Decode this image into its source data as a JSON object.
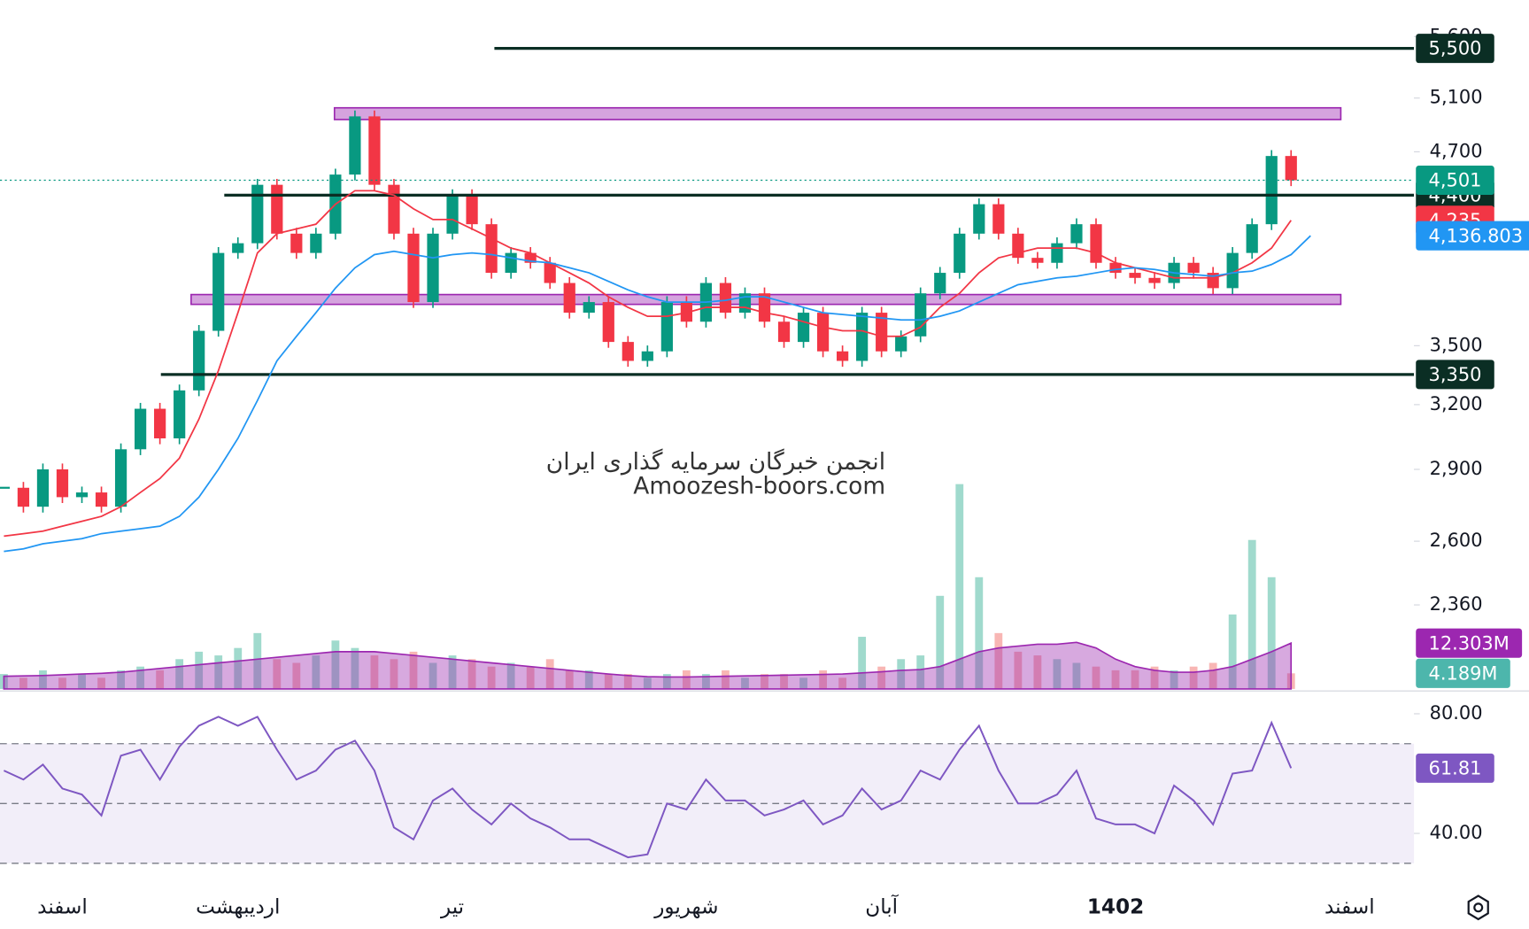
{
  "chart_data": [
    {
      "type": "candlestick",
      "log_scale": true,
      "ylim": [
        2080,
        5920
      ],
      "yticks": [
        {
          "value": 5600,
          "label": "5,600"
        },
        {
          "value": 5100,
          "label": "5,100"
        },
        {
          "value": 4700,
          "label": "4,700"
        },
        {
          "value": 3500,
          "label": "3,500"
        },
        {
          "value": 3200,
          "label": "3,200"
        },
        {
          "value": 2900,
          "label": "2,900"
        },
        {
          "value": 2600,
          "label": "2,600"
        },
        {
          "value": 2360,
          "label": "2,360"
        }
      ],
      "categories": [
        null,
        null,
        null,
        "اسفند",
        null,
        null,
        null,
        null,
        null,
        null,
        null,
        null,
        "اردیبهشت",
        null,
        null,
        null,
        null,
        null,
        null,
        null,
        null,
        null,
        null,
        "تیر",
        null,
        null,
        null,
        null,
        null,
        null,
        null,
        null,
        null,
        null,
        null,
        "شهریور",
        null,
        null,
        null,
        null,
        null,
        null,
        null,
        null,
        null,
        "آبان",
        null,
        null,
        null,
        null,
        null,
        null,
        null,
        null,
        null,
        null,
        null,
        "1402",
        null,
        null,
        null,
        null,
        null,
        null,
        null,
        null,
        null,
        null,
        null,
        "اسفند",
        null,
        null
      ],
      "close": [
        2820,
        2740,
        2900,
        2780,
        2800,
        2740,
        2990,
        3180,
        3040,
        3270,
        3580,
        4030,
        4090,
        4470,
        4150,
        4030,
        4150,
        4540,
        4960,
        4470,
        4150,
        3740,
        4150,
        4400,
        4210,
        3910,
        4030,
        3970,
        3850,
        3680,
        3740,
        3520,
        3420,
        3470,
        3740,
        3630,
        3850,
        3680,
        3790,
        3630,
        3520,
        3680,
        3470,
        3420,
        3680,
        3470,
        3550,
        3790,
        3910,
        4150,
        4340,
        4150,
        4000,
        3970,
        4090,
        4210,
        3970,
        3910,
        3880,
        3850,
        3970,
        3910,
        3820,
        4030,
        4210,
        4670,
        4501,
        null,
        null,
        null,
        null,
        null
      ],
      "last_label": "4,501",
      "up_color": "#089981",
      "down_color": "#f23645",
      "series": [
        {
          "color": "#f23645",
          "values": [
            2620,
            2630,
            2640,
            2660,
            2680,
            2700,
            2740,
            2800,
            2860,
            2950,
            3130,
            3370,
            3680,
            4030,
            4150,
            4180,
            4210,
            4340,
            4430,
            4430,
            4400,
            4310,
            4240,
            4240,
            4180,
            4120,
            4060,
            4030,
            3970,
            3910,
            3850,
            3770,
            3710,
            3660,
            3660,
            3680,
            3710,
            3710,
            3710,
            3680,
            3660,
            3630,
            3600,
            3580,
            3580,
            3550,
            3550,
            3600,
            3710,
            3790,
            3910,
            4000,
            4030,
            4060,
            4060,
            4060,
            4030,
            3970,
            3940,
            3910,
            3880,
            3880,
            3880,
            3910,
            3970,
            4060,
            4235,
            null,
            null,
            null,
            null,
            null
          ],
          "last_label": "4,235"
        },
        {
          "color": "#2196f3",
          "values": [
            2560,
            2570,
            2590,
            2600,
            2610,
            2630,
            2640,
            2650,
            2660,
            2700,
            2780,
            2900,
            3040,
            3220,
            3420,
            3550,
            3680,
            3820,
            3940,
            4020,
            4040,
            4020,
            4000,
            4020,
            4030,
            4020,
            4000,
            3980,
            3970,
            3940,
            3910,
            3860,
            3810,
            3770,
            3740,
            3740,
            3740,
            3750,
            3770,
            3770,
            3740,
            3710,
            3680,
            3670,
            3660,
            3650,
            3640,
            3640,
            3660,
            3690,
            3740,
            3790,
            3840,
            3860,
            3880,
            3890,
            3910,
            3930,
            3940,
            3930,
            3910,
            3900,
            3890,
            3910,
            3920,
            3960,
            4020,
            4136.803,
            null,
            null,
            null,
            null
          ],
          "last_label": "4,136.803"
        }
      ],
      "levels": [
        {
          "value": 5500,
          "label": "5,500"
        },
        {
          "value": 4400,
          "label": "4,400"
        },
        {
          "value": 3350,
          "label": "3,350"
        }
      ],
      "level_color": "#0b2e24",
      "zones": [
        [
          4936,
          5025
        ],
        [
          3727,
          3783
        ]
      ],
      "zone_color": "#ce93d8",
      "watermark": [
        "انجمن خبرگان سرمایه گذاری ایران",
        "Amoozesh-boors.com"
      ]
    },
    {
      "type": "bar",
      "ylim": [
        0,
        60
      ],
      "values": [
        4,
        3,
        5,
        3,
        4,
        3,
        5,
        6,
        5,
        8,
        10,
        9,
        11,
        15,
        8,
        7,
        9,
        13,
        11,
        9,
        8,
        10,
        7,
        9,
        8,
        6,
        7,
        6,
        8,
        5,
        5,
        4,
        4,
        3,
        4,
        5,
        4,
        5,
        3,
        4,
        4,
        3,
        5,
        3,
        14,
        6,
        8,
        9,
        25,
        55,
        30,
        15,
        10,
        9,
        8,
        7,
        6,
        5,
        5,
        6,
        5,
        6,
        7,
        20,
        40,
        30,
        4.189,
        null,
        null,
        null,
        null,
        null
      ],
      "last_label": "4.189M",
      "last_color": "#4db6ac",
      "series": [
        {
          "color": "#9c27b0",
          "values": [
            3.4,
            3.5,
            3.6,
            3.8,
            4,
            4.2,
            4.5,
            5,
            5.5,
            6,
            6.5,
            7,
            7.5,
            8,
            8.5,
            9,
            9.5,
            10,
            10,
            10,
            9.5,
            9,
            8.5,
            8,
            7.5,
            7,
            6.5,
            6,
            5.5,
            5,
            4.5,
            4,
            3.6,
            3.3,
            3.2,
            3.2,
            3.3,
            3.4,
            3.5,
            3.6,
            3.7,
            3.8,
            3.9,
            4,
            4.3,
            4.6,
            5,
            5.2,
            6,
            8,
            10,
            11,
            11.5,
            12,
            12,
            12.5,
            11,
            8,
            6,
            5,
            4.5,
            4.5,
            5,
            6,
            8,
            10,
            12.303,
            null,
            null,
            null,
            null,
            null
          ],
          "last_label": "12.303M"
        }
      ]
    },
    {
      "type": "line",
      "ylim": [
        25,
        87
      ],
      "yticks": [
        {
          "value": 80,
          "label": "80.00"
        },
        {
          "value": 40,
          "label": "40.00"
        }
      ],
      "bands": [
        30,
        50,
        70
      ],
      "band_color": "#7e57c2",
      "series": [
        {
          "color": "#7e57c2",
          "values": [
            61,
            58,
            63,
            55,
            53,
            46,
            66,
            68,
            58,
            69,
            76,
            79,
            76,
            79,
            68,
            58,
            61,
            68,
            71,
            61,
            42,
            38,
            51,
            55,
            48,
            43,
            50,
            45,
            42,
            38,
            38,
            35,
            32,
            33,
            50,
            48,
            58,
            51,
            51,
            46,
            48,
            51,
            43,
            46,
            55,
            48,
            51,
            61,
            58,
            68,
            76,
            61,
            50,
            50,
            53,
            61,
            45,
            43,
            43,
            40,
            56,
            51,
            43,
            60,
            61,
            77,
            61.81,
            null,
            null,
            null,
            null,
            null
          ],
          "last_label": "61.81"
        }
      ]
    }
  ]
}
